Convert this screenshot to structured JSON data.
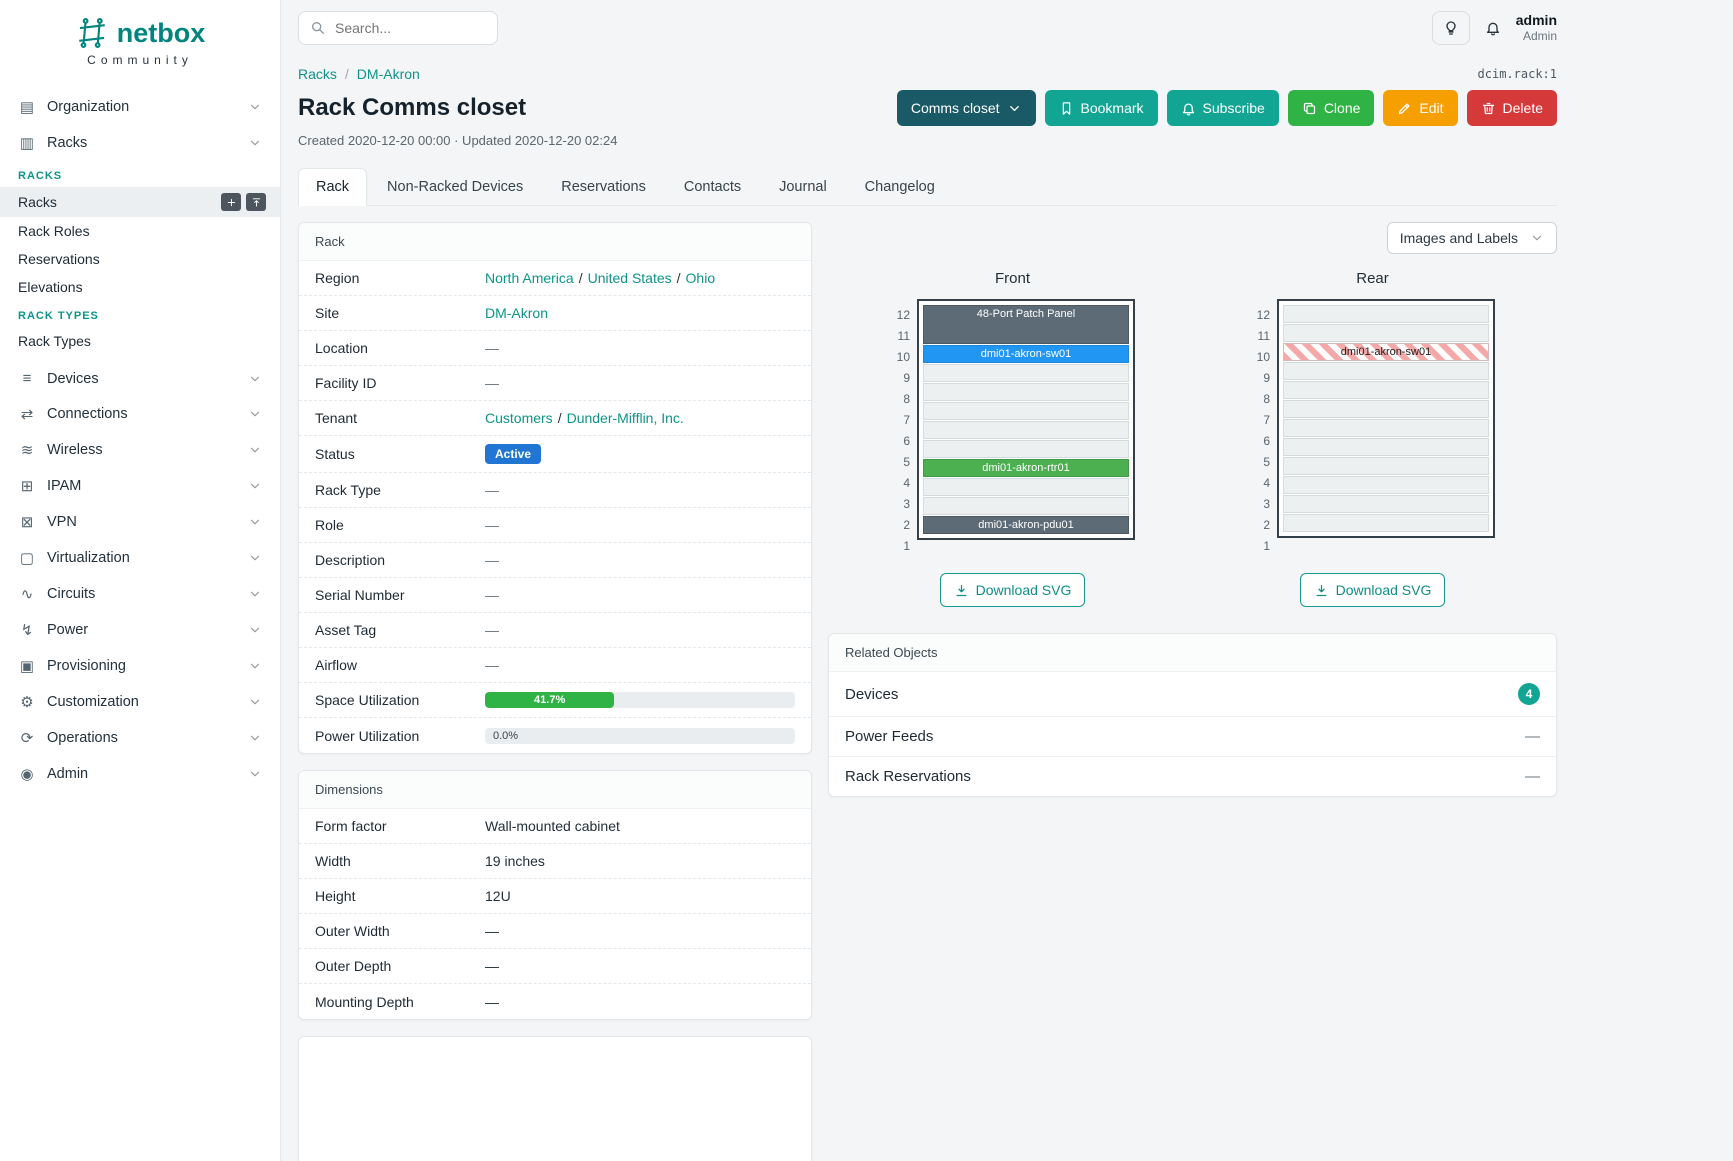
{
  "colors": {
    "brand_teal": "#00857e",
    "accent_teal": "#12a594",
    "link_teal": "#0e9488",
    "status_active_blue": "#2076d2",
    "utilization_green": "#2fb344",
    "button_name_dark_teal": "#1a5a66",
    "button_clone_green": "#2fb344",
    "button_edit_yellow": "#f59f00",
    "button_delete_red": "#d63939",
    "device_dark_slate": "#5d6b76",
    "device_blue": "#2196f3",
    "device_green": "#4caf50",
    "rear_occupied_stripe": "#f4a9a8"
  },
  "separator": "/",
  "brand": {
    "name": "netbox",
    "subtitle": "Community"
  },
  "topbar": {
    "search_placeholder": "Search...",
    "user_name": "admin",
    "user_role": "Admin"
  },
  "sidebar": {
    "organization": {
      "label": "Organization",
      "glyph": "▤"
    },
    "racks_group": {
      "label": "Racks",
      "glyph": "▥"
    },
    "racks_section": {
      "title": "RACKS",
      "racks": "Racks",
      "rack_roles": "Rack Roles",
      "reservations": "Reservations",
      "elevations": "Elevations"
    },
    "rack_types_section": {
      "title": "RACK TYPES",
      "rack_types": "Rack Types"
    },
    "items": [
      {
        "label": "Devices",
        "glyph": "≡"
      },
      {
        "label": "Connections",
        "glyph": "⇄"
      },
      {
        "label": "Wireless",
        "glyph": "≋"
      },
      {
        "label": "IPAM",
        "glyph": "⊞"
      },
      {
        "label": "VPN",
        "glyph": "⊠"
      },
      {
        "label": "Virtualization",
        "glyph": "▢"
      },
      {
        "label": "Circuits",
        "glyph": "∿"
      },
      {
        "label": "Power",
        "glyph": "↯"
      },
      {
        "label": "Provisioning",
        "glyph": "▣"
      },
      {
        "label": "Customization",
        "glyph": "⚙"
      },
      {
        "label": "Operations",
        "glyph": "⟳"
      },
      {
        "label": "Admin",
        "glyph": "◉"
      }
    ]
  },
  "breadcrumb": {
    "racks": "Racks",
    "current": "DM-Akron"
  },
  "object_id": "dcim.rack:1",
  "page": {
    "title": "Rack Comms closet",
    "meta": "Created 2020-12-20 00:00 · Updated 2020-12-20 02:24"
  },
  "actions": {
    "name": "Comms closet",
    "bookmark": "Bookmark",
    "subscribe": "Subscribe",
    "clone": "Clone",
    "edit": "Edit",
    "delete": "Delete"
  },
  "tabs": [
    {
      "label": "Rack",
      "active": true
    },
    {
      "label": "Non-Racked Devices"
    },
    {
      "label": "Reservations"
    },
    {
      "label": "Contacts"
    },
    {
      "label": "Journal"
    },
    {
      "label": "Changelog"
    }
  ],
  "rack_panel": {
    "title": "Rack",
    "region": {
      "label": "Region",
      "parts": [
        "North America",
        "United States",
        "Ohio"
      ]
    },
    "site": {
      "label": "Site",
      "value": "DM-Akron"
    },
    "location": {
      "label": "Location",
      "value": "—"
    },
    "facility_id": {
      "label": "Facility ID",
      "value": "—"
    },
    "tenant": {
      "label": "Tenant",
      "parts": [
        "Customers",
        "Dunder-Mifflin, Inc."
      ]
    },
    "status": {
      "label": "Status",
      "value": "Active"
    },
    "rack_type": {
      "label": "Rack Type",
      "value": "—"
    },
    "role": {
      "label": "Role",
      "value": "—"
    },
    "description": {
      "label": "Description",
      "value": "—"
    },
    "serial": {
      "label": "Serial Number",
      "value": "—"
    },
    "asset_tag": {
      "label": "Asset Tag",
      "value": "—"
    },
    "airflow": {
      "label": "Airflow",
      "value": "—"
    },
    "space_util": {
      "label": "Space Utilization",
      "value": "41.7%",
      "percent": 41.7
    },
    "power_util": {
      "label": "Power Utilization",
      "value": "0.0%",
      "percent": 0
    }
  },
  "dimensions": {
    "title": "Dimensions",
    "rows": [
      {
        "label": "Form factor",
        "value": "Wall-mounted cabinet"
      },
      {
        "label": "Width",
        "value": "19 inches"
      },
      {
        "label": "Height",
        "value": "12U"
      },
      {
        "label": "Outer Width",
        "value": "—"
      },
      {
        "label": "Outer Depth",
        "value": "—"
      },
      {
        "label": "Mounting Depth",
        "value": "—"
      }
    ]
  },
  "elevations": {
    "view_label": "Images and Labels",
    "unit_numbers": [
      12,
      11,
      10,
      9,
      8,
      7,
      6,
      5,
      4,
      3,
      2,
      1
    ],
    "front": {
      "title": "Front",
      "download_label": "Download SVG",
      "units": [
        {
          "u": 12,
          "span": 2,
          "kind": "dark",
          "label": "48-Port Patch Panel"
        },
        {
          "u": 10,
          "kind": "blue",
          "label": "dmi01-akron-sw01"
        },
        {
          "u": 9,
          "kind": "empty"
        },
        {
          "u": 8,
          "kind": "empty"
        },
        {
          "u": 7,
          "kind": "empty"
        },
        {
          "u": 6,
          "kind": "empty"
        },
        {
          "u": 5,
          "kind": "empty"
        },
        {
          "u": 4,
          "kind": "green",
          "label": "dmi01-akron-rtr01"
        },
        {
          "u": 3,
          "kind": "empty"
        },
        {
          "u": 2,
          "kind": "empty"
        },
        {
          "u": 1,
          "kind": "dark",
          "label": "dmi01-akron-pdu01"
        }
      ]
    },
    "rear": {
      "title": "Rear",
      "download_label": "Download SVG",
      "units": [
        {
          "u": 12,
          "kind": "empty"
        },
        {
          "u": 11,
          "kind": "empty"
        },
        {
          "u": 10,
          "kind": "striped",
          "label": "dmi01-akron-sw01"
        },
        {
          "u": 9,
          "kind": "empty"
        },
        {
          "u": 8,
          "kind": "empty"
        },
        {
          "u": 7,
          "kind": "empty"
        },
        {
          "u": 6,
          "kind": "empty"
        },
        {
          "u": 5,
          "kind": "empty"
        },
        {
          "u": 4,
          "kind": "empty"
        },
        {
          "u": 3,
          "kind": "empty"
        },
        {
          "u": 2,
          "kind": "empty"
        },
        {
          "u": 1,
          "kind": "empty"
        }
      ]
    }
  },
  "related": {
    "title": "Related Objects",
    "devices_label": "Devices",
    "devices_count": "4",
    "power_feeds_label": "Power Feeds",
    "power_feeds_value": "—",
    "reservations_label": "Rack Reservations",
    "reservations_value": "—"
  }
}
